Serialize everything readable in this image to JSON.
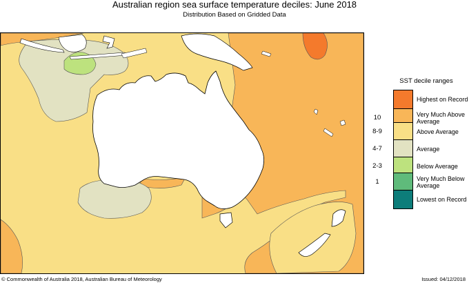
{
  "header": {
    "title": "Australian region sea surface temperature deciles:  June 2018",
    "subtitle": "Distribution Based on Gridded Data"
  },
  "legend": {
    "title": "SST decile ranges",
    "items": [
      {
        "range": "",
        "label": "Highest on Record",
        "color": "#f47a2c"
      },
      {
        "range": "10",
        "label": "Very Much Above Average",
        "color": "#f8b658"
      },
      {
        "range": "8-9",
        "label": "Above Average",
        "color": "#f9df86"
      },
      {
        "range": "4-7",
        "label": "Average",
        "color": "#e2e2c2"
      },
      {
        "range": "2-3",
        "label": "Below Average",
        "color": "#bde27e"
      },
      {
        "range": "1",
        "label": "Very Much Below Average",
        "color": "#5fbb7b"
      },
      {
        "range": "",
        "label": "Lowest on Record",
        "color": "#0d7d7a"
      }
    ]
  },
  "map": {
    "land_color": "#ffffff",
    "coast_color": "#000000",
    "contour_color": "#555555"
  },
  "footer": {
    "copyright": "© Commonwealth of Australia 2018, Australian Bureau of Meteorology",
    "issued": "Issued: 04/12/2018"
  }
}
